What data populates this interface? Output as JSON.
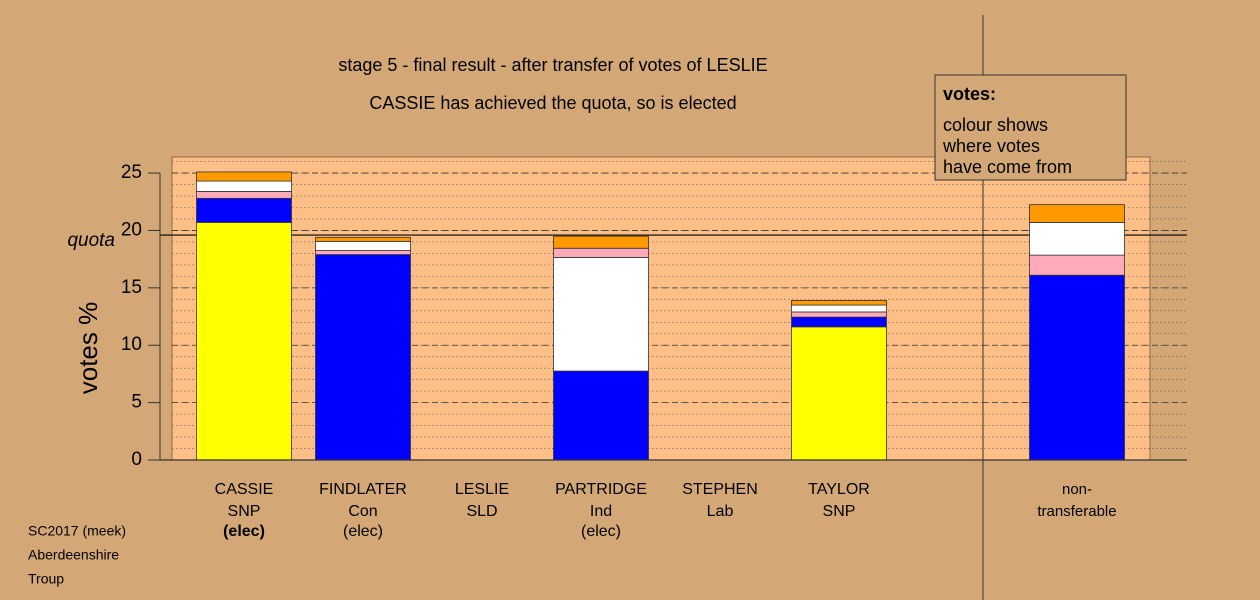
{
  "chart_data": {
    "type": "stacked-bar",
    "title": "stage 5 - final result - after transfer of votes of LESLIE",
    "subtitle": "CASSIE has achieved the quota, so is elected",
    "ylabel": "votes %",
    "categories": [
      "CASSIE",
      "FINDLATER",
      "LESLIE",
      "PARTRIDGE",
      "STEPHEN",
      "TAYLOR",
      null,
      "non-transferable"
    ],
    "parties": [
      "SNP",
      "Con",
      "SLD",
      "Ind",
      "Lab",
      "SNP",
      null,
      null
    ],
    "status": [
      "(elec)",
      "(elec)",
      null,
      "(elec)",
      null,
      null,
      null,
      null
    ],
    "series": [
      {
        "color": "#ffff00",
        "values": [
          20.7,
          0,
          0,
          0,
          0,
          11.6,
          null,
          0
        ]
      },
      {
        "color": "#0000ff",
        "values": [
          2.1,
          17.9,
          0,
          7.75,
          0,
          0.85,
          null,
          16.1
        ]
      },
      {
        "color": "#ffffff",
        "values": [
          0,
          0,
          0,
          9.9,
          0,
          0,
          null,
          0
        ]
      },
      {
        "color": "#ffaabb",
        "values": [
          0.6,
          0.35,
          0,
          0.8,
          0,
          0.45,
          null,
          1.75
        ]
      },
      {
        "color": "#ffffff",
        "values": [
          0.9,
          0.8,
          0,
          0,
          0,
          0.6,
          null,
          2.85
        ]
      },
      {
        "color": "#ff9900",
        "values": [
          0.8,
          0.35,
          0,
          1.05,
          0,
          0.4,
          null,
          1.55
        ]
      }
    ],
    "ylim": [
      0,
      26.4
    ],
    "yticks": [
      0,
      5,
      10,
      15,
      20,
      25
    ],
    "quota": {
      "value": 19.6,
      "label": "quota"
    },
    "grid": true,
    "legend_title": "votes:",
    "legend_text": [
      "colour shows",
      "where votes",
      "have come from"
    ],
    "footnotes": [
      "SC2017 (meek)",
      "Aberdeenshire",
      "Troup"
    ]
  }
}
